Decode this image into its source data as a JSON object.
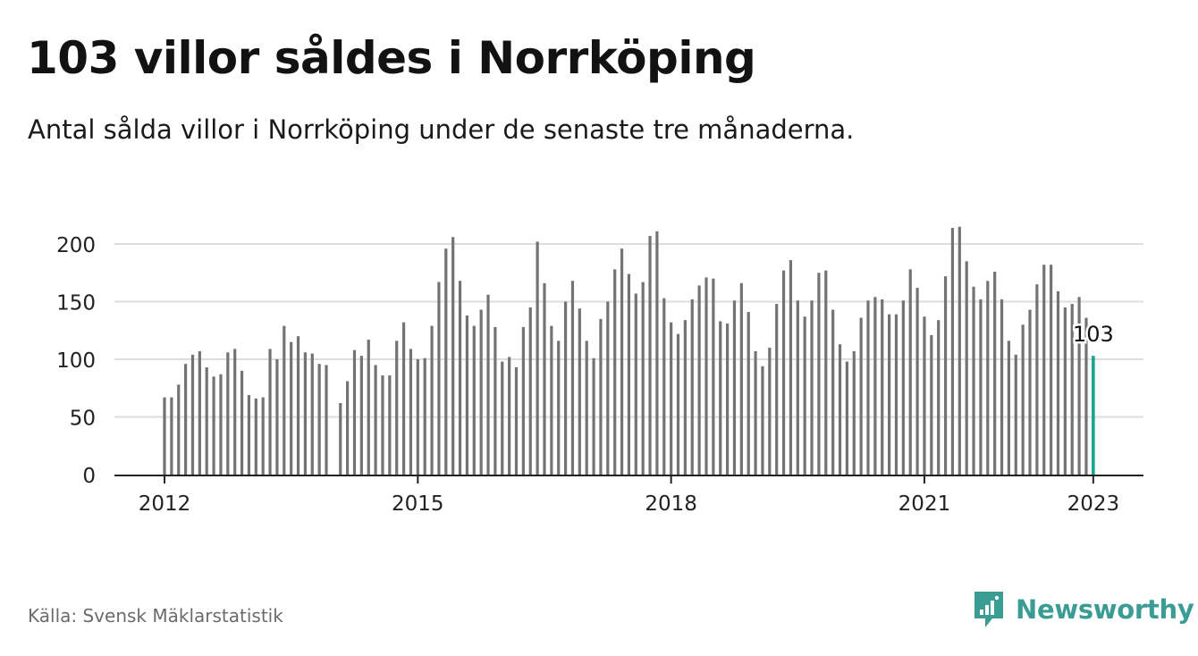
{
  "title": "103 villor såldes i Norrköping",
  "subtitle": "Antal sålda villor i Norrköping under de senaste tre månaderna.",
  "source": "Källa: Svensk Mäklarstatistik",
  "brand": {
    "name": "Newsworthy",
    "icon": "newsworthy-logo-icon",
    "color": "#3a9c93"
  },
  "colors": {
    "bar": "#737373",
    "highlight": "#1aa38f",
    "grid": "#dddddd",
    "axis": "#222222"
  },
  "chart_data": {
    "type": "bar",
    "title": "",
    "xlabel": "",
    "ylabel": "",
    "ylim": [
      0,
      215
    ],
    "yticks": [
      0,
      50,
      100,
      150,
      200
    ],
    "x_tick_labels": [
      "2012",
      "2015",
      "2018",
      "2021",
      "2023"
    ],
    "grid": "horizontal",
    "start_month": "2012-01",
    "values": [
      67,
      67,
      78,
      96,
      104,
      107,
      93,
      85,
      87,
      106,
      109,
      90,
      69,
      66,
      67,
      109,
      100,
      129,
      115,
      120,
      106,
      105,
      96,
      95,
      null,
      62,
      81,
      108,
      103,
      117,
      95,
      86,
      86,
      116,
      132,
      109,
      100,
      101,
      129,
      167,
      196,
      206,
      168,
      138,
      129,
      143,
      156,
      128,
      98,
      102,
      93,
      128,
      145,
      202,
      166,
      129,
      116,
      150,
      168,
      144,
      116,
      101,
      135,
      150,
      178,
      196,
      174,
      157,
      167,
      207,
      211,
      153,
      132,
      122,
      134,
      152,
      164,
      171,
      170,
      133,
      131,
      151,
      166,
      141,
      107,
      94,
      110,
      148,
      177,
      186,
      151,
      137,
      151,
      175,
      177,
      143,
      113,
      98,
      107,
      136,
      151,
      154,
      152,
      139,
      139,
      151,
      178,
      162,
      137,
      121,
      134,
      172,
      214,
      215,
      185,
      163,
      152,
      168,
      176,
      152,
      116,
      104,
      130,
      143,
      165,
      182,
      182,
      159,
      145,
      148,
      154,
      136,
      103
    ],
    "highlight": {
      "label": "103",
      "value": 103
    }
  }
}
